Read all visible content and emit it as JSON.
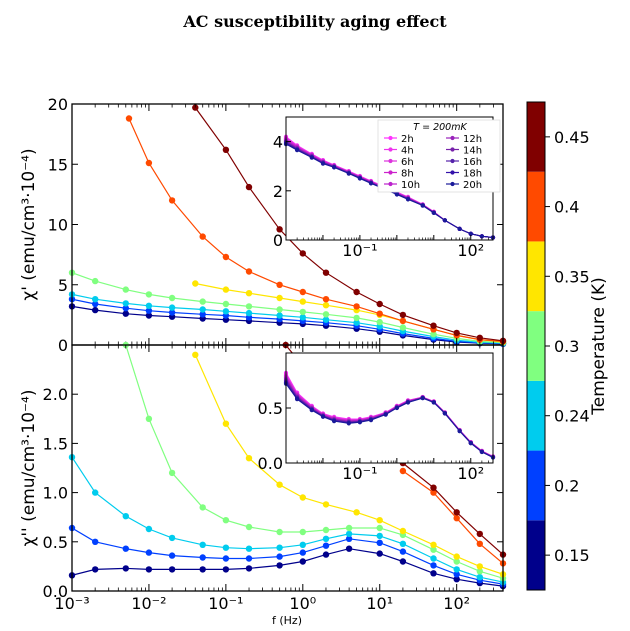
{
  "figure": {
    "title": "AC susceptibility aging effect",
    "xlabel_main": "f (Hz)"
  },
  "colorbar": {
    "label": "Temperature (K)",
    "levels": [
      "0.15",
      "0.2",
      "0.24",
      "0.3",
      "0.35",
      "0.4",
      "0.45"
    ],
    "colors": [
      "#00008b",
      "#0040ff",
      "#00ccee",
      "#80ff80",
      "#ffe600",
      "#ff4a00",
      "#800000"
    ]
  },
  "chart_data": [
    {
      "type": "line",
      "panel": "top",
      "ylabel": "χ' (emu/cm³·10⁻⁴)",
      "xscale": "log",
      "xlim": [
        0.001,
        400
      ],
      "ylim": [
        0,
        20
      ],
      "yticks": [
        0,
        5,
        10,
        15,
        20
      ],
      "xticks": [
        "10⁻³",
        "10⁻²",
        "10⁻¹",
        "10⁰",
        "10¹",
        "10²"
      ],
      "series": [
        {
          "temperature": "0.15",
          "color": "#00008b",
          "x": [
            0.001,
            0.002,
            0.005,
            0.01,
            0.02,
            0.05,
            0.1,
            0.2,
            0.5,
            1,
            2,
            5,
            10,
            20,
            50,
            100,
            200,
            400
          ],
          "y": [
            3.2,
            2.9,
            2.6,
            2.45,
            2.35,
            2.2,
            2.1,
            2.0,
            1.85,
            1.75,
            1.6,
            1.35,
            1.1,
            0.8,
            0.45,
            0.25,
            0.15,
            0.1
          ]
        },
        {
          "temperature": "0.2",
          "color": "#0040ff",
          "x": [
            0.001,
            0.002,
            0.005,
            0.01,
            0.02,
            0.05,
            0.1,
            0.2,
            0.5,
            1,
            2,
            5,
            10,
            20,
            50,
            100,
            200,
            400
          ],
          "y": [
            3.8,
            3.4,
            3.05,
            2.85,
            2.7,
            2.55,
            2.45,
            2.3,
            2.15,
            2.0,
            1.85,
            1.6,
            1.3,
            0.95,
            0.55,
            0.3,
            0.18,
            0.12
          ]
        },
        {
          "temperature": "0.24",
          "color": "#00ccee",
          "x": [
            0.001,
            0.002,
            0.005,
            0.01,
            0.02,
            0.05,
            0.1,
            0.2,
            0.5,
            1,
            2,
            5,
            10,
            20,
            50,
            100,
            200,
            400
          ],
          "y": [
            4.2,
            3.8,
            3.45,
            3.25,
            3.1,
            2.95,
            2.8,
            2.65,
            2.45,
            2.3,
            2.1,
            1.85,
            1.55,
            1.15,
            0.7,
            0.4,
            0.22,
            0.15
          ]
        },
        {
          "temperature": "0.3",
          "color": "#80ff80",
          "x": [
            0.001,
            0.002,
            0.005,
            0.01,
            0.02,
            0.05,
            0.1,
            0.2,
            0.5,
            1,
            2,
            5,
            10,
            20,
            50,
            100,
            200,
            400
          ],
          "y": [
            6.0,
            5.3,
            4.6,
            4.2,
            3.9,
            3.6,
            3.4,
            3.2,
            2.95,
            2.75,
            2.55,
            2.25,
            1.9,
            1.45,
            0.9,
            0.55,
            0.3,
            0.2
          ]
        },
        {
          "temperature": "0.35",
          "color": "#ffe600",
          "x": [
            0.04,
            0.1,
            0.2,
            0.5,
            1,
            2,
            5,
            10,
            20,
            50,
            100,
            200,
            400
          ],
          "y": [
            5.1,
            4.6,
            4.3,
            3.9,
            3.6,
            3.3,
            2.9,
            2.5,
            2.0,
            1.3,
            0.8,
            0.45,
            0.25
          ]
        },
        {
          "temperature": "0.4",
          "color": "#ff4a00",
          "x": [
            0.0055,
            0.01,
            0.02,
            0.05,
            0.1,
            0.2,
            0.5,
            1,
            2,
            5,
            10,
            20,
            50,
            100,
            200,
            400
          ],
          "y": [
            18.8,
            15.1,
            12.0,
            9.0,
            7.3,
            6.1,
            5.0,
            4.4,
            3.8,
            3.2,
            2.6,
            2.0,
            1.3,
            0.8,
            0.45,
            0.3
          ]
        },
        {
          "temperature": "0.45",
          "color": "#800000",
          "x": [
            0.04,
            0.1,
            0.2,
            0.5,
            1,
            2,
            5,
            10,
            20,
            50,
            100,
            200,
            400
          ],
          "y": [
            19.7,
            16.2,
            13.1,
            9.6,
            7.6,
            6.0,
            4.4,
            3.4,
            2.5,
            1.6,
            1.0,
            0.6,
            0.35
          ]
        }
      ],
      "inset": {
        "annotation": "T = 200mK",
        "xscale": "log",
        "xlim": [
          0.001,
          400
        ],
        "ylim": [
          0,
          5
        ],
        "yticks": [
          "0",
          "2",
          "4"
        ],
        "xticks": [
          "10⁻¹",
          "10²"
        ],
        "legend": [
          "2h",
          "4h",
          "6h",
          "8h",
          "10h",
          "12h",
          "14h",
          "16h",
          "18h",
          "20h"
        ],
        "legend_colors": [
          "#ff33ff",
          "#ee33ee",
          "#dd33dd",
          "#cc22cc",
          "#bb22cc",
          "#9922bb",
          "#7722aa",
          "#5522aa",
          "#3311aa",
          "#1a1a9a"
        ],
        "x": [
          0.001,
          0.002,
          0.005,
          0.01,
          0.02,
          0.05,
          0.1,
          0.2,
          0.5,
          1,
          2,
          5,
          10,
          20,
          50,
          100,
          200,
          400
        ],
        "y_first": [
          4.2,
          3.85,
          3.5,
          3.25,
          3.05,
          2.8,
          2.6,
          2.4,
          2.15,
          1.95,
          1.75,
          1.45,
          1.15,
          0.8,
          0.45,
          0.25,
          0.15,
          0.1
        ],
        "y_last": [
          3.9,
          3.65,
          3.35,
          3.1,
          2.95,
          2.7,
          2.5,
          2.3,
          2.05,
          1.85,
          1.65,
          1.4,
          1.1,
          0.8,
          0.45,
          0.25,
          0.15,
          0.1
        ]
      }
    },
    {
      "type": "line",
      "panel": "bottom",
      "ylabel": "χ'' (emu/cm³·10⁻⁴)",
      "xlabel": "f (Hz)",
      "xscale": "log",
      "xlim": [
        0.001,
        400
      ],
      "ylim": [
        0,
        2.5
      ],
      "yticks": [
        "0.0",
        "0.5",
        "1.0",
        "1.5",
        "2.0"
      ],
      "xticks": [
        "10⁻³",
        "10⁻²",
        "10⁻¹",
        "10⁰",
        "10¹",
        "10²"
      ],
      "series": [
        {
          "temperature": "0.15",
          "color": "#00008b",
          "x": [
            0.001,
            0.002,
            0.005,
            0.01,
            0.02,
            0.05,
            0.1,
            0.2,
            0.5,
            1,
            2,
            4,
            10,
            20,
            50,
            100,
            200,
            400
          ],
          "y": [
            0.16,
            0.22,
            0.23,
            0.22,
            0.22,
            0.22,
            0.22,
            0.23,
            0.26,
            0.3,
            0.37,
            0.43,
            0.38,
            0.3,
            0.18,
            0.12,
            0.08,
            0.05
          ]
        },
        {
          "temperature": "0.2",
          "color": "#0040ff",
          "x": [
            0.001,
            0.002,
            0.005,
            0.01,
            0.02,
            0.05,
            0.1,
            0.2,
            0.5,
            1,
            2,
            4,
            10,
            20,
            50,
            100,
            200,
            400
          ],
          "y": [
            0.64,
            0.5,
            0.43,
            0.39,
            0.36,
            0.34,
            0.33,
            0.33,
            0.35,
            0.39,
            0.46,
            0.53,
            0.49,
            0.4,
            0.26,
            0.17,
            0.11,
            0.07
          ]
        },
        {
          "temperature": "0.24",
          "color": "#00ccee",
          "x": [
            0.001,
            0.002,
            0.005,
            0.01,
            0.02,
            0.05,
            0.1,
            0.2,
            0.5,
            1,
            2,
            4,
            10,
            20,
            50,
            100,
            200,
            400
          ],
          "y": [
            1.36,
            1.0,
            0.76,
            0.63,
            0.54,
            0.47,
            0.44,
            0.43,
            0.44,
            0.47,
            0.53,
            0.58,
            0.56,
            0.48,
            0.33,
            0.22,
            0.14,
            0.09
          ]
        },
        {
          "temperature": "0.3",
          "color": "#80ff80",
          "x": [
            0.005,
            0.01,
            0.02,
            0.05,
            0.1,
            0.2,
            0.5,
            1,
            2,
            4,
            10,
            20,
            50,
            100,
            200,
            400
          ],
          "y": [
            2.5,
            1.75,
            1.2,
            0.85,
            0.72,
            0.65,
            0.6,
            0.6,
            0.62,
            0.64,
            0.64,
            0.57,
            0.42,
            0.3,
            0.2,
            0.13
          ]
        },
        {
          "temperature": "0.35",
          "color": "#ffe600",
          "x": [
            0.04,
            0.1,
            0.2,
            0.5,
            1,
            2,
            5,
            10,
            20,
            50,
            100,
            200,
            400
          ],
          "y": [
            2.4,
            1.7,
            1.35,
            1.08,
            0.95,
            0.88,
            0.8,
            0.72,
            0.61,
            0.47,
            0.35,
            0.25,
            0.17
          ]
        },
        {
          "temperature": "0.4",
          "color": "#ff4a00",
          "x": [
            20,
            50,
            100,
            200,
            400
          ],
          "y": [
            1.22,
            1.0,
            0.74,
            0.48,
            0.28
          ]
        },
        {
          "temperature": "0.45",
          "color": "#800000",
          "x": [
            0.6,
            2,
            5,
            10,
            20,
            50,
            100,
            200,
            400
          ],
          "y": [
            2.5,
            2.0,
            1.7,
            1.48,
            1.3,
            1.05,
            0.8,
            0.58,
            0.37
          ]
        }
      ],
      "inset": {
        "xscale": "log",
        "xlim": [
          0.001,
          400
        ],
        "ylim": [
          0,
          1.0
        ],
        "yticks": [
          "0.0",
          "0.5"
        ],
        "xticks": [
          "10⁻¹",
          "10²"
        ],
        "x": [
          0.001,
          0.002,
          0.005,
          0.01,
          0.02,
          0.05,
          0.1,
          0.2,
          0.5,
          1,
          2,
          5,
          10,
          20,
          50,
          100,
          200,
          400
        ],
        "y_first": [
          0.82,
          0.64,
          0.52,
          0.45,
          0.42,
          0.4,
          0.4,
          0.42,
          0.46,
          0.52,
          0.57,
          0.6,
          0.56,
          0.46,
          0.3,
          0.19,
          0.11,
          0.06
        ],
        "y_last": [
          0.72,
          0.58,
          0.48,
          0.42,
          0.38,
          0.36,
          0.37,
          0.39,
          0.44,
          0.5,
          0.55,
          0.59,
          0.55,
          0.45,
          0.29,
          0.18,
          0.1,
          0.05
        ]
      }
    }
  ]
}
